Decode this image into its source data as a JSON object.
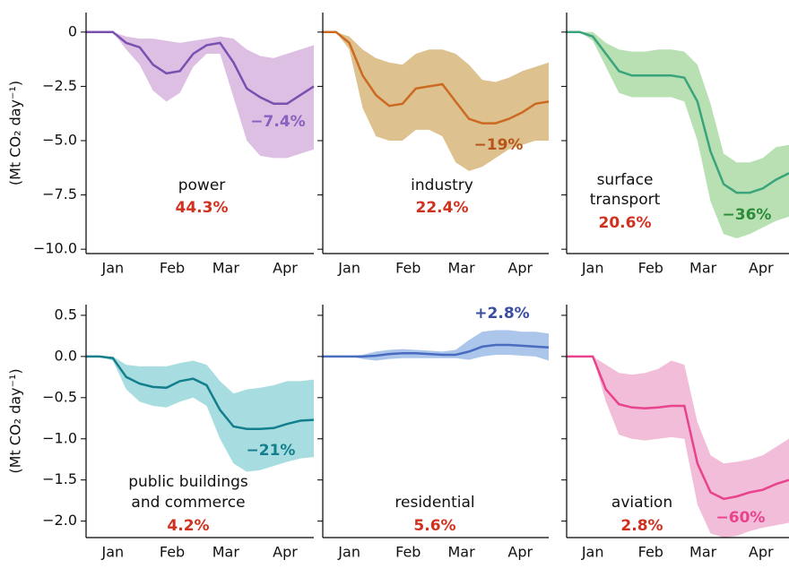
{
  "chart_data": [
    {
      "type": "line",
      "label": [
        "power"
      ],
      "share": "44.3%",
      "change": "−7.4%",
      "color": "#7b4fb0",
      "band_color": "#dcbfe3",
      "label_color": "#8a60c0",
      "share_color": "#d0311f",
      "ylabel": "(Mt CO₂ day⁻¹)",
      "x": [
        1,
        8,
        15,
        22,
        29,
        36,
        43,
        50,
        57,
        64,
        71,
        78,
        85,
        92,
        99,
        106,
        113,
        120
      ],
      "values": [
        0,
        0,
        0,
        -0.5,
        -0.7,
        -1.5,
        -1.9,
        -1.8,
        -1.0,
        -0.6,
        -0.5,
        -1.4,
        -2.6,
        -3.0,
        -3.3,
        -3.3,
        -2.9,
        -2.5
      ],
      "lower": [
        0,
        0,
        0,
        -0.8,
        -1.5,
        -2.7,
        -3.2,
        -2.8,
        -1.6,
        -1.0,
        -1.0,
        -3.0,
        -5.0,
        -5.7,
        -5.8,
        -5.8,
        -5.6,
        -5.4
      ],
      "upper": [
        0,
        0,
        0,
        -0.2,
        -0.3,
        -0.3,
        -0.4,
        -0.5,
        -0.4,
        -0.3,
        -0.2,
        -0.3,
        -0.8,
        -1.1,
        -1.2,
        -1.0,
        -0.8,
        -0.6
      ],
      "xlim": [
        1,
        120
      ],
      "xticks": [
        {
          "value": 15,
          "label": "Jan"
        },
        {
          "value": 46,
          "label": "Feb"
        },
        {
          "value": 74,
          "label": "Mar"
        },
        {
          "value": 105,
          "label": "Apr"
        }
      ],
      "ylim": [
        -10.2,
        0.9
      ],
      "yticks": [
        0,
        {
          "value": -2.5,
          "label": "−2.5"
        },
        {
          "value": -5,
          "label": "−5.0"
        },
        {
          "value": -7.5,
          "label": "−7.5"
        },
        {
          "value": -10,
          "label": "−10.0"
        }
      ]
    },
    {
      "type": "line",
      "label": [
        "industry"
      ],
      "share": "22.4%",
      "change": "−19%",
      "color": "#cc6a22",
      "band_color": "#ddc18e",
      "label_color": "#b8541a",
      "share_color": "#d0311f",
      "x": [
        1,
        8,
        15,
        22,
        29,
        36,
        43,
        50,
        57,
        64,
        71,
        78,
        85,
        92,
        99,
        106,
        113,
        120
      ],
      "values": [
        0,
        0,
        -0.5,
        -2.0,
        -2.9,
        -3.4,
        -3.3,
        -2.6,
        -2.5,
        -2.4,
        -3.2,
        -4.0,
        -4.2,
        -4.2,
        -4.0,
        -3.7,
        -3.3,
        -3.2
      ],
      "lower": [
        0,
        0,
        -0.8,
        -3.5,
        -4.8,
        -5.0,
        -5.0,
        -4.5,
        -4.5,
        -4.8,
        -6.0,
        -6.4,
        -6.2,
        -5.8,
        -5.4,
        -5.2,
        -5.0,
        -5.0
      ],
      "upper": [
        0,
        0,
        -0.2,
        -0.8,
        -1.2,
        -1.4,
        -1.5,
        -1.0,
        -0.8,
        -0.8,
        -1.0,
        -1.5,
        -2.2,
        -2.3,
        -2.1,
        -1.8,
        -1.6,
        -1.4
      ],
      "xlim": [
        1,
        120
      ],
      "xticks": [
        {
          "value": 15,
          "label": "Jan"
        },
        {
          "value": 46,
          "label": "Feb"
        },
        {
          "value": 74,
          "label": "Mar"
        },
        {
          "value": 105,
          "label": "Apr"
        }
      ],
      "ylim": [
        -10.2,
        0.9
      ],
      "yticks": [
        0,
        -2.5,
        -5,
        -7.5,
        -10
      ]
    },
    {
      "type": "line",
      "label": [
        "surface",
        "transport"
      ],
      "share": "20.6%",
      "change": "−36%",
      "color": "#3aa57c",
      "band_color": "#b8e0b3",
      "label_color": "#2c8a3a",
      "share_color": "#d0311f",
      "x": [
        1,
        8,
        15,
        22,
        29,
        36,
        43,
        50,
        57,
        64,
        71,
        78,
        85,
        92,
        99,
        106,
        113,
        120
      ],
      "values": [
        0,
        0,
        -0.2,
        -1.0,
        -1.8,
        -2.0,
        -2.0,
        -2.0,
        -2.0,
        -2.1,
        -3.2,
        -5.5,
        -7.0,
        -7.4,
        -7.4,
        -7.2,
        -6.8,
        -6.5
      ],
      "lower": [
        0,
        0,
        -0.4,
        -1.6,
        -2.8,
        -3.0,
        -3.0,
        -3.0,
        -3.0,
        -3.2,
        -5.0,
        -7.8,
        -9.3,
        -9.5,
        -9.3,
        -9.0,
        -8.7,
        -8.5
      ],
      "upper": [
        0,
        0,
        0,
        -0.5,
        -0.8,
        -0.9,
        -0.9,
        -0.8,
        -0.8,
        -0.9,
        -1.5,
        -3.3,
        -5.6,
        -6.0,
        -6.0,
        -5.8,
        -5.3,
        -5.2
      ],
      "xlim": [
        1,
        120
      ],
      "xticks": [
        {
          "value": 15,
          "label": "Jan"
        },
        {
          "value": 46,
          "label": "Feb"
        },
        {
          "value": 74,
          "label": "Mar"
        },
        {
          "value": 105,
          "label": "Apr"
        }
      ],
      "ylim": [
        -10.2,
        0.9
      ],
      "yticks": [
        0,
        -2.5,
        -5,
        -7.5,
        -10
      ]
    },
    {
      "type": "line",
      "label": [
        "public buildings",
        "and commerce"
      ],
      "share": "4.2%",
      "change": "−21%",
      "color": "#137f8c",
      "band_color": "#a7dde0",
      "label_color": "#137f8c",
      "share_color": "#d0311f",
      "ylabel": "(Mt CO₂ day⁻¹)",
      "x": [
        1,
        8,
        15,
        22,
        29,
        36,
        43,
        50,
        57,
        64,
        71,
        78,
        85,
        92,
        99,
        106,
        113,
        120
      ],
      "values": [
        0,
        0,
        -0.02,
        -0.25,
        -0.33,
        -0.37,
        -0.38,
        -0.3,
        -0.27,
        -0.35,
        -0.65,
        -0.85,
        -0.88,
        -0.88,
        -0.87,
        -0.82,
        -0.78,
        -0.77
      ],
      "lower": [
        0,
        0,
        -0.05,
        -0.4,
        -0.55,
        -0.6,
        -0.62,
        -0.55,
        -0.5,
        -0.6,
        -1.0,
        -1.3,
        -1.4,
        -1.38,
        -1.33,
        -1.28,
        -1.24,
        -1.22
      ],
      "upper": [
        0,
        0,
        0,
        -0.1,
        -0.12,
        -0.12,
        -0.12,
        -0.08,
        -0.05,
        -0.1,
        -0.3,
        -0.45,
        -0.4,
        -0.38,
        -0.35,
        -0.3,
        -0.3,
        -0.28
      ],
      "xlim": [
        1,
        120
      ],
      "xticks": [
        {
          "value": 15,
          "label": "Jan"
        },
        {
          "value": 46,
          "label": "Feb"
        },
        {
          "value": 74,
          "label": "Mar"
        },
        {
          "value": 105,
          "label": "Apr"
        }
      ],
      "ylim": [
        -2.2,
        0.63
      ],
      "yticks": [
        0.5,
        {
          "value": 0,
          "label": "0.0"
        },
        {
          "value": -0.5,
          "label": "−0.5"
        },
        {
          "value": -1,
          "label": "−1.0"
        },
        {
          "value": -1.5,
          "label": "−1.5"
        },
        {
          "value": -2,
          "label": "−2.0"
        }
      ]
    },
    {
      "type": "line",
      "label": [
        "residential"
      ],
      "share": "5.6%",
      "change": "+2.8%",
      "color": "#4a6cc0",
      "band_color": "#abc5eb",
      "label_color": "#3a4ea0",
      "share_color": "#d0311f",
      "x": [
        1,
        8,
        15,
        22,
        29,
        36,
        43,
        50,
        57,
        64,
        71,
        78,
        85,
        92,
        99,
        106,
        113,
        120
      ],
      "values": [
        0,
        0,
        0,
        0,
        0.01,
        0.03,
        0.04,
        0.04,
        0.03,
        0.02,
        0.02,
        0.06,
        0.12,
        0.14,
        0.14,
        0.13,
        0.12,
        0.11
      ],
      "lower": [
        0,
        0,
        0,
        -0.03,
        -0.05,
        -0.03,
        -0.02,
        -0.02,
        -0.02,
        -0.02,
        -0.02,
        -0.04,
        0,
        0.02,
        0.02,
        0.01,
        0,
        -0.05
      ],
      "upper": [
        0,
        0,
        0,
        0.02,
        0.06,
        0.08,
        0.09,
        0.08,
        0.07,
        0.06,
        0.08,
        0.2,
        0.3,
        0.32,
        0.32,
        0.3,
        0.3,
        0.28
      ],
      "xlim": [
        1,
        120
      ],
      "xticks": [
        {
          "value": 15,
          "label": "Jan"
        },
        {
          "value": 46,
          "label": "Feb"
        },
        {
          "value": 74,
          "label": "Mar"
        },
        {
          "value": 105,
          "label": "Apr"
        }
      ],
      "ylim": [
        -2.2,
        0.63
      ],
      "yticks": [
        0.5,
        0,
        -0.5,
        -1,
        -1.5,
        -2
      ]
    },
    {
      "type": "line",
      "label": [
        "aviation"
      ],
      "share": "2.8%",
      "change": "−60%",
      "color": "#e8438c",
      "band_color": "#f2bdd8",
      "label_color": "#e8438c",
      "share_color": "#d0311f",
      "x": [
        1,
        8,
        15,
        22,
        29,
        36,
        43,
        50,
        57,
        64,
        71,
        78,
        85,
        92,
        99,
        106,
        113,
        120
      ],
      "values": [
        0,
        0,
        0,
        -0.4,
        -0.58,
        -0.62,
        -0.63,
        -0.62,
        -0.6,
        -0.6,
        -1.3,
        -1.65,
        -1.73,
        -1.7,
        -1.65,
        -1.62,
        -1.55,
        -1.5
      ],
      "lower": [
        0,
        0,
        0,
        -0.55,
        -0.95,
        -1.0,
        -1.02,
        -1.0,
        -0.98,
        -1.0,
        -1.8,
        -2.15,
        -2.2,
        -2.18,
        -2.12,
        -2.08,
        -2.05,
        -2.02
      ],
      "upper": [
        0,
        0,
        0,
        -0.1,
        -0.2,
        -0.22,
        -0.2,
        -0.15,
        -0.05,
        -0.1,
        -0.8,
        -1.2,
        -1.3,
        -1.28,
        -1.25,
        -1.2,
        -1.1,
        -1.0
      ],
      "xlim": [
        1,
        120
      ],
      "xticks": [
        {
          "value": 15,
          "label": "Jan"
        },
        {
          "value": 46,
          "label": "Feb"
        },
        {
          "value": 74,
          "label": "Mar"
        },
        {
          "value": 105,
          "label": "Apr"
        }
      ],
      "ylim": [
        -2.2,
        0.63
      ],
      "yticks": [
        0.5,
        0,
        -0.5,
        -1,
        -1.5,
        -2
      ]
    }
  ]
}
